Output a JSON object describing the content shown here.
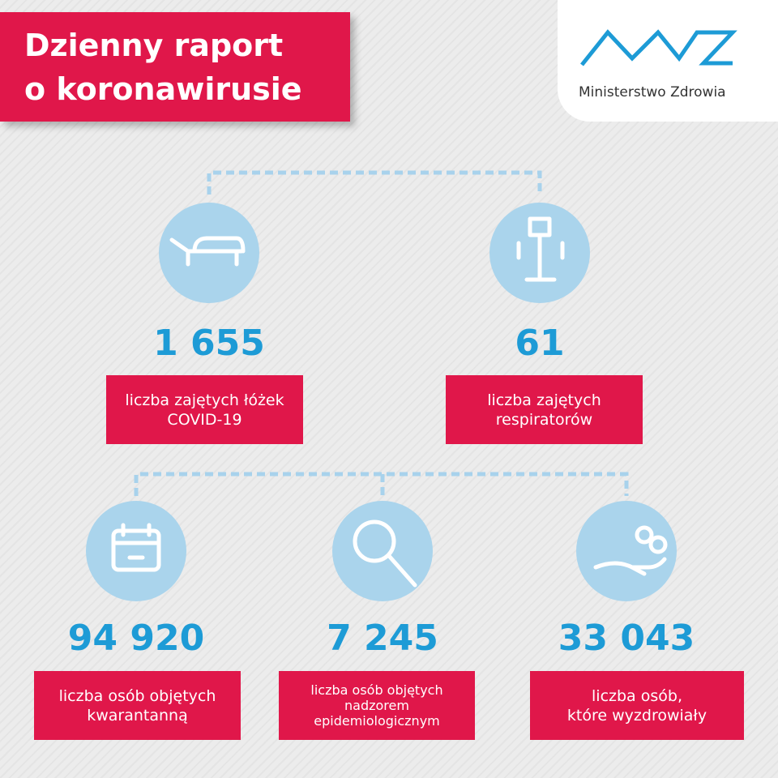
{
  "header": {
    "title": [
      "Dzienny raport",
      "o koronawirusie"
    ]
  },
  "logo": {
    "text": "Ministerstwo Zdrowia"
  },
  "stats": [
    {
      "value": "1 655",
      "label": [
        "liczba zajętych łóżek",
        "COVID-19"
      ]
    },
    {
      "value": "61",
      "label": [
        "liczba zajętych",
        "respiratorów"
      ]
    },
    {
      "value": "94 920",
      "label": [
        "liczba osób objętych",
        "kwarantanną"
      ]
    },
    {
      "value": "7 245",
      "label": [
        "liczba osób objętych",
        "nadzorem",
        "epidemiologicznym"
      ]
    },
    {
      "value": "33 043",
      "label": [
        "liczba osób,",
        "które wyzdrowiały"
      ]
    }
  ]
}
